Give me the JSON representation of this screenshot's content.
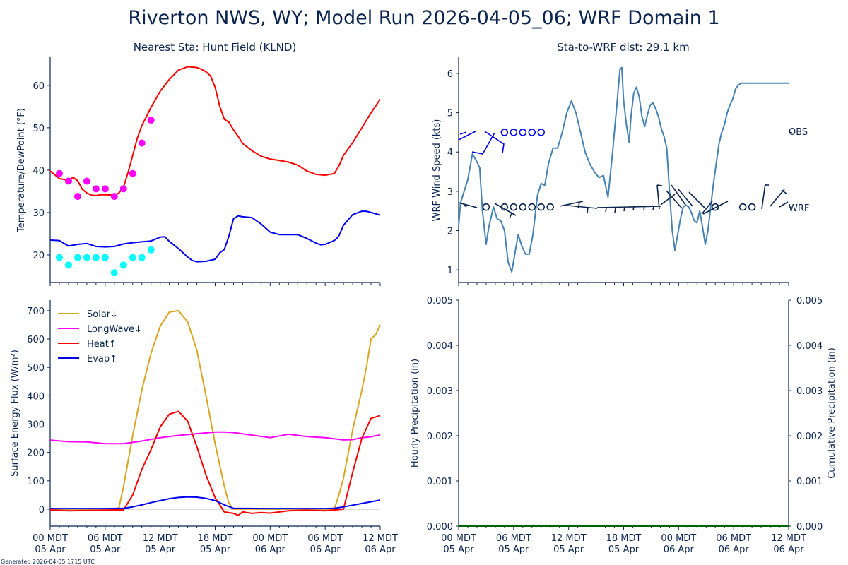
{
  "title": "Riverton NWS, WY; Model Run 2026-04-05_06; WRF Domain 1",
  "footer": "Generated 2026-04-05 1715 UTC",
  "colors": {
    "axis": "#0b2550",
    "temperature": "#ff0000",
    "dewpoint": "#0000ee",
    "temp_obs": "#ff00ff",
    "dewpoint_obs": "#00ffff",
    "wind_speed": "#4682b4",
    "obs_barbs": "#0000ee",
    "wrf_barbs": "#0b2550",
    "solar": "#daa520",
    "longwave": "#ff00ff",
    "heat": "#ff0000",
    "evap": "#0000ee",
    "zero_line": "#a0a0a0",
    "precip": "#006400"
  },
  "x_axis": {
    "tick_labels": [
      [
        "00 MDT",
        "05 Apr"
      ],
      [
        "06 MDT",
        "05 Apr"
      ],
      [
        "12 MDT",
        "05 Apr"
      ],
      [
        "18 MDT",
        "05 Apr"
      ],
      [
        "00 MDT",
        "06 Apr"
      ],
      [
        "06 MDT",
        "06 Apr"
      ],
      [
        "12 MDT",
        "06 Apr"
      ]
    ],
    "major_hours": [
      0,
      6,
      12,
      18,
      24,
      30,
      36
    ],
    "range_hours": [
      0,
      36
    ],
    "minor_step_hours": 1
  },
  "chart_data": [
    {
      "id": "temp-dewpoint",
      "type": "line",
      "title": "Nearest Sta: Hunt Field (KLND)",
      "xlabel": "",
      "ylabel": "Temperature/DewPoint (°F)",
      "ylim": [
        13.5,
        66.8
      ],
      "yticks": [
        20,
        30,
        40,
        50,
        60
      ],
      "series": [
        {
          "name": "WRF Temperature",
          "kind": "line",
          "color_key": "temperature",
          "x": [
            0,
            1,
            2,
            2.5,
            3,
            3.5,
            4,
            4.5,
            5,
            5.5,
            6,
            7,
            7.5,
            8,
            8.5,
            9,
            9.5,
            10,
            11,
            12,
            13,
            14,
            15,
            16,
            16.5,
            17,
            17.5,
            18,
            18.5,
            19,
            19.5,
            20,
            20.5,
            21,
            22,
            23,
            24,
            25,
            26,
            27,
            28,
            29,
            29.5,
            30,
            31,
            31.5,
            32,
            33,
            34,
            35,
            36
          ],
          "y": [
            39.8,
            38,
            37.6,
            38.3,
            37.5,
            35.5,
            34.6,
            34.1,
            34,
            34.2,
            34.2,
            34.1,
            34.6,
            36,
            39.5,
            43.5,
            47.5,
            50.5,
            54.8,
            58.6,
            61.4,
            63.6,
            64.4,
            64.2,
            63.8,
            63.2,
            62.2,
            59.5,
            55,
            52,
            51.3,
            49.5,
            48,
            46.3,
            44.6,
            43.3,
            42.6,
            42.3,
            41.9,
            41.2,
            39.8,
            39,
            38.9,
            38.8,
            39.2,
            41,
            43.5,
            46.5,
            50,
            53.5,
            56.7
          ]
        },
        {
          "name": "WRF DewPoint",
          "kind": "line",
          "color_key": "dewpoint",
          "x": [
            0,
            1,
            2,
            3,
            4,
            5,
            6,
            7,
            8,
            9,
            10,
            11,
            12,
            12.5,
            13,
            14,
            15,
            15.5,
            16,
            17,
            18,
            18.5,
            19,
            19.5,
            20,
            20.5,
            21,
            22,
            23,
            24,
            25,
            26,
            27,
            28,
            29,
            29.5,
            30,
            31,
            31.3,
            31.5,
            32,
            33,
            34,
            34.5,
            35,
            36
          ],
          "y": [
            23.5,
            23.4,
            22.1,
            22.5,
            22.7,
            22,
            21.9,
            22,
            22.6,
            22.9,
            23.1,
            23.3,
            24.2,
            24.3,
            23.2,
            21.5,
            19.5,
            18.7,
            18.4,
            18.5,
            19,
            20.5,
            21.3,
            24.5,
            28.5,
            29.2,
            29,
            28.8,
            27.3,
            25.4,
            24.8,
            24.8,
            24.8,
            23.9,
            22.8,
            22.4,
            22.5,
            23.4,
            24,
            24.5,
            27,
            29.5,
            30.3,
            30.3,
            30,
            29.4
          ]
        },
        {
          "name": "Obs Temperature",
          "kind": "scatter",
          "color_key": "temp_obs",
          "x": [
            1,
            2,
            3,
            4,
            5,
            6,
            7,
            8,
            9,
            10,
            11
          ],
          "y": [
            39.2,
            37.4,
            33.8,
            37.4,
            35.6,
            35.6,
            33.8,
            35.6,
            39.2,
            46.4,
            51.8
          ]
        },
        {
          "name": "Obs DewPoint",
          "kind": "scatter",
          "color_key": "dewpoint_obs",
          "x": [
            1,
            2,
            3,
            4,
            5,
            6,
            7,
            8,
            9,
            10,
            11
          ],
          "y": [
            19.4,
            17.6,
            19.4,
            19.4,
            19.4,
            19.4,
            15.8,
            17.6,
            19.4,
            19.4,
            21.2
          ]
        }
      ]
    },
    {
      "id": "wind",
      "type": "line",
      "title": "Sta-to-WRF dist: 29.1 km",
      "xlabel": "",
      "ylabel": "WRF Wind Speed (kts)",
      "ylim": [
        0.68,
        6.43
      ],
      "yticks": [
        1,
        2,
        3,
        4,
        5,
        6
      ],
      "right_labels": [
        {
          "text": "OBS",
          "y": 4.5
        },
        {
          "text": "WRF",
          "y": 2.6
        }
      ],
      "series": [
        {
          "name": "WRF Wind Speed",
          "kind": "line",
          "color_key": "wind_speed",
          "x": [
            0,
            0.2,
            0.6,
            1,
            1.5,
            2,
            2.3,
            2.6,
            3,
            3.3,
            3.8,
            4.2,
            4.6,
            5,
            5.4,
            5.8,
            6.2,
            6.5,
            6.9,
            7.3,
            7.7,
            8.1,
            8.6,
            9,
            9.4,
            9.8,
            10.3,
            10.8,
            11.3,
            11.8,
            12.3,
            12.8,
            13.3,
            13.8,
            14.3,
            14.8,
            15.3,
            15.8,
            16.3,
            16.8,
            17.3,
            17.6,
            17.8,
            18,
            18.3,
            18.6,
            18.8,
            19.1,
            19.4,
            19.7,
            20,
            20.3,
            20.6,
            20.9,
            21.2,
            21.5,
            21.8,
            22.1,
            22.4,
            22.7,
            23,
            23.3,
            23.6,
            23.9,
            24.2,
            24.5,
            24.8,
            25.1,
            25.4,
            25.7,
            26,
            26.3,
            26.6,
            26.9,
            27.2,
            27.5,
            27.8,
            28.1,
            28.4,
            28.7,
            29,
            29.3,
            29.6,
            29.9,
            30.2,
            30.5,
            30.8,
            31.1,
            31.4,
            31.7,
            32,
            32.4,
            32.8,
            33.2,
            33.6,
            34,
            34.4,
            34.8,
            35.2,
            35.6,
            36
          ],
          "y": [
            2.1,
            2.7,
            3.0,
            3.3,
            3.95,
            3.75,
            3.6,
            2.5,
            1.65,
            2.1,
            2.6,
            2.3,
            2.25,
            2.0,
            1.2,
            0.95,
            1.5,
            1.9,
            1.6,
            1.4,
            1.4,
            1.9,
            2.9,
            3.2,
            3.15,
            3.7,
            4.1,
            4.1,
            4.5,
            5.0,
            5.3,
            5.0,
            4.5,
            4.0,
            3.7,
            3.5,
            3.35,
            3.4,
            2.85,
            4.0,
            5.3,
            6.1,
            6.15,
            5.3,
            4.7,
            4.25,
            4.9,
            5.5,
            5.65,
            5.4,
            4.9,
            4.65,
            4.95,
            5.2,
            5.25,
            5.1,
            4.9,
            4.6,
            4.4,
            4.1,
            3.0,
            2.0,
            1.5,
            1.9,
            2.3,
            2.6,
            2.65,
            2.6,
            2.45,
            2.25,
            2.2,
            2.5,
            2.1,
            1.65,
            2.0,
            2.6,
            3.2,
            3.7,
            4.2,
            4.5,
            4.7,
            5.0,
            5.2,
            5.35,
            5.6,
            5.7,
            5.75,
            5.75,
            5.75,
            5.75,
            5.75,
            5.75,
            5.75,
            5.75,
            5.75,
            5.75,
            5.75,
            5.75,
            5.75,
            5.75,
            5.75
          ]
        },
        {
          "name": "OBS wind barbs",
          "kind": "barbs",
          "color_key": "obs_barbs",
          "level": 4.5,
          "calm_x_hours": [
            5,
            6,
            7,
            8,
            9
          ]
        },
        {
          "name": "WRF wind barbs",
          "kind": "barbs",
          "color_key": "wrf_barbs",
          "level": 2.6,
          "calm_x_hours": [
            3,
            5,
            6,
            7,
            8,
            9,
            10,
            28,
            31,
            32
          ]
        }
      ]
    },
    {
      "id": "energy-flux",
      "type": "line",
      "title": "",
      "xlabel": "",
      "ylabel": "Surface Energy Flux (W/m²)",
      "ylim": [
        -60,
        737
      ],
      "yticks": [
        0,
        100,
        200,
        300,
        400,
        500,
        600,
        700
      ],
      "legend": {
        "placement": "top-left",
        "entries": [
          {
            "label": "Solar↓",
            "color_key": "solar"
          },
          {
            "label": "LongWave↓",
            "color_key": "longwave"
          },
          {
            "label": "Heat↑",
            "color_key": "heat"
          },
          {
            "label": "Evap↑",
            "color_key": "evap"
          }
        ]
      },
      "series": [
        {
          "name": "Solar↓",
          "color_key": "solar",
          "x": [
            0,
            7,
            7.5,
            8,
            9,
            10,
            11,
            12,
            13,
            14,
            15,
            16,
            17,
            18,
            19,
            19.5,
            20,
            24,
            28,
            30,
            31,
            31.5,
            32,
            33,
            34,
            34.5,
            35,
            35.5,
            36
          ],
          "y": [
            0,
            0,
            5,
            80,
            260,
            420,
            550,
            645,
            695,
            700,
            660,
            560,
            400,
            230,
            80,
            20,
            0,
            0,
            0,
            0,
            0,
            50,
            110,
            280,
            420,
            500,
            600,
            615,
            650
          ]
        },
        {
          "name": "LongWave↓",
          "color_key": "longwave",
          "x": [
            0,
            2,
            4,
            6,
            8,
            10,
            12,
            14,
            16,
            18,
            19,
            20,
            22,
            24,
            25,
            26,
            28,
            30,
            31,
            32,
            33,
            34,
            35,
            36
          ],
          "y": [
            243,
            238,
            237,
            231,
            231,
            240,
            252,
            260,
            266,
            272,
            272,
            270,
            261,
            252,
            258,
            264,
            256,
            252,
            248,
            244,
            245,
            252,
            255,
            262
          ]
        },
        {
          "name": "Heat↑",
          "color_key": "heat",
          "x": [
            0,
            2,
            4,
            6,
            7,
            8,
            9,
            10,
            11,
            12,
            13,
            14,
            15,
            16,
            17,
            18,
            19,
            20,
            20.5,
            21,
            22,
            23,
            24,
            25,
            26,
            28,
            30,
            31,
            32,
            33,
            34,
            35,
            36
          ],
          "y": [
            -3,
            -6,
            -5,
            -4,
            -3,
            -3,
            50,
            140,
            210,
            290,
            335,
            345,
            310,
            220,
            120,
            40,
            -10,
            -15,
            -22,
            -10,
            -15,
            -12,
            -14,
            -10,
            -6,
            -4,
            -6,
            -3,
            0,
            130,
            250,
            320,
            330
          ]
        },
        {
          "name": "Evap↑",
          "color_key": "evap",
          "x": [
            0,
            6,
            8,
            9,
            10,
            11,
            12,
            13,
            14,
            15,
            16,
            17,
            18,
            19,
            20,
            24,
            28,
            30,
            31,
            32,
            33,
            34,
            35,
            36
          ],
          "y": [
            2,
            2,
            3,
            8,
            15,
            23,
            30,
            37,
            41,
            43,
            42,
            38,
            30,
            15,
            3,
            2,
            2,
            2,
            3,
            8,
            14,
            20,
            26,
            32
          ]
        }
      ],
      "zero_line": true
    },
    {
      "id": "precip",
      "type": "line",
      "title": "",
      "xlabel": "",
      "ylabel": "Hourly Precipitation (in)",
      "ylabel_right": "Cumulative Precipitation (in)",
      "ylim": [
        0,
        0.005
      ],
      "yticks": [
        "0.000",
        "0.001",
        "0.002",
        "0.003",
        "0.004",
        "0.005"
      ],
      "series": [
        {
          "name": "Hourly Precipitation",
          "color_key": "precip",
          "x": [
            0,
            36
          ],
          "y": [
            0,
            0
          ]
        },
        {
          "name": "Cumulative Precipitation",
          "color_key": "precip",
          "x": [
            0,
            36
          ],
          "y": [
            0,
            0
          ]
        }
      ]
    }
  ]
}
